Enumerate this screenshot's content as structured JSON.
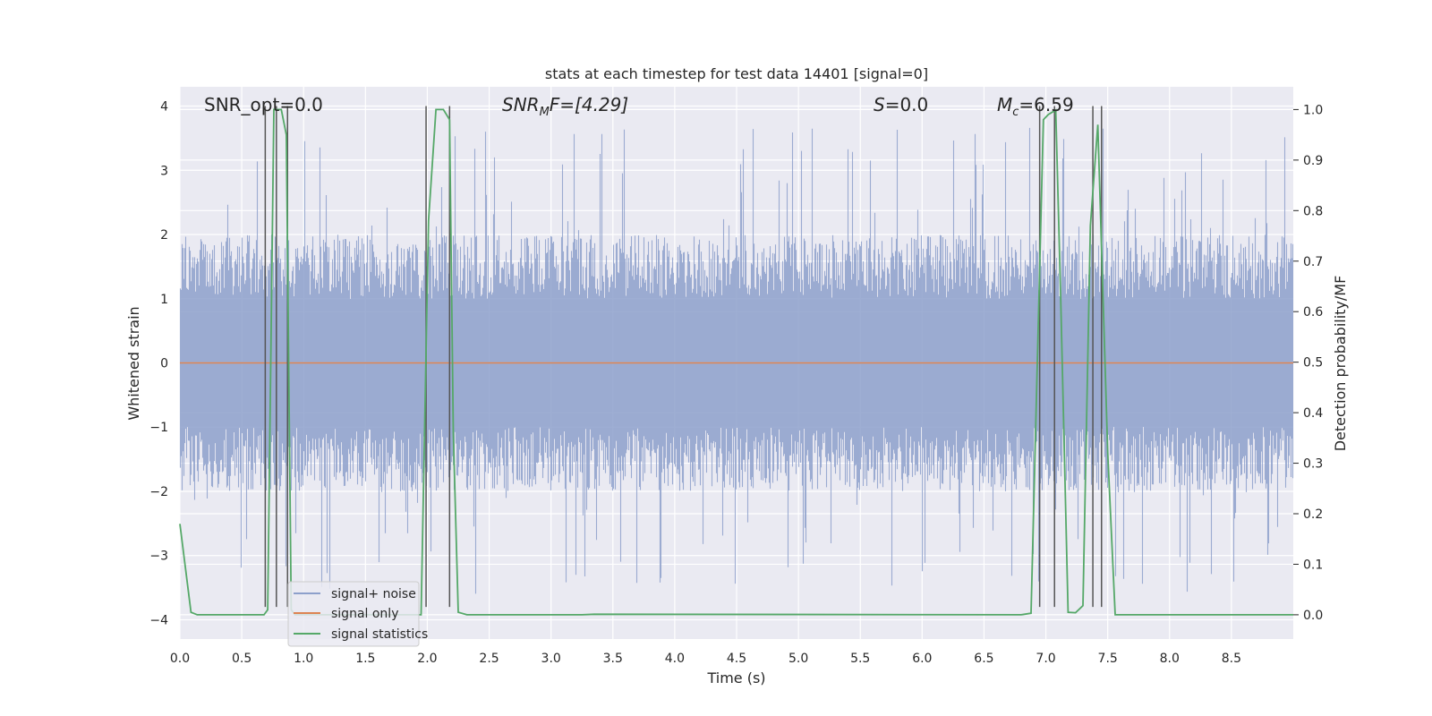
{
  "chart_data": {
    "type": "line",
    "title": "stats at each timestep for test data 14401 [signal=0]",
    "xlabel": "Time (s)",
    "ylabel": "Whitened strain",
    "ylabel_right": "Detection probability/MF",
    "xlim": [
      0,
      9.0
    ],
    "ylim": [
      -4.3,
      4.3
    ],
    "ylim_right": [
      -0.048,
      1.045
    ],
    "x_ticks": [
      "0.0",
      "0.5",
      "1.0",
      "1.5",
      "2.0",
      "2.5",
      "3.0",
      "3.5",
      "4.0",
      "4.5",
      "5.0",
      "5.5",
      "6.0",
      "6.5",
      "7.0",
      "7.5",
      "8.0",
      "8.5"
    ],
    "y_ticks": [
      "4",
      "3",
      "2",
      "1",
      "0",
      "−1",
      "−2",
      "−3",
      "−4"
    ],
    "y_ticks_right": [
      "1.0",
      "0.9",
      "0.8",
      "0.7",
      "0.6",
      "0.5",
      "0.4",
      "0.3",
      "0.2",
      "0.1",
      "0.0"
    ],
    "grid": true,
    "legend_position": "lower-left",
    "annotations": [
      "SNR_opt=0.0",
      "SNR",
      "M",
      "F=[4.29]",
      "S",
      "=0.0",
      "M",
      "c",
      "=6.59"
    ],
    "series": [
      {
        "name": "signal+ noise",
        "color": "#8da0cb",
        "kind": "noise",
        "description_values": {
          "baseline_abs_range": [
            1.0,
            2.0
          ],
          "peak_max": 3.7,
          "peak_min": -3.6
        }
      },
      {
        "name": "signal only",
        "color": "#dd8452",
        "kind": "flat",
        "value": 0
      },
      {
        "name": "signal statistics",
        "color": "#55a868",
        "axis": "right",
        "x": [
          0.0,
          0.09,
          0.14,
          0.68,
          0.71,
          0.76,
          0.82,
          0.86,
          0.9,
          0.93,
          1.95,
          2.01,
          2.07,
          2.13,
          2.18,
          2.21,
          2.25,
          2.32,
          3.25,
          3.35,
          6.8,
          6.88,
          6.98,
          7.02,
          7.08,
          7.12,
          7.18,
          7.24,
          7.3,
          7.36,
          7.42,
          7.5,
          7.56,
          9.0
        ],
        "y": [
          0.18,
          0.005,
          0.0,
          0.0,
          0.01,
          1.0,
          1.0,
          0.95,
          0.01,
          0.0,
          0.0,
          0.78,
          1.0,
          1.0,
          0.98,
          0.36,
          0.005,
          0.0,
          0.0,
          0.001,
          0.0,
          0.003,
          0.98,
          0.99,
          0.999,
          0.63,
          0.005,
          0.004,
          0.018,
          0.77,
          0.97,
          0.32,
          0.0,
          0.0
        ]
      }
    ],
    "vertical_lines_x": [
      0.69,
      0.78,
      0.87,
      1.99,
      2.18,
      6.95,
      7.07,
      7.38,
      7.45
    ]
  }
}
